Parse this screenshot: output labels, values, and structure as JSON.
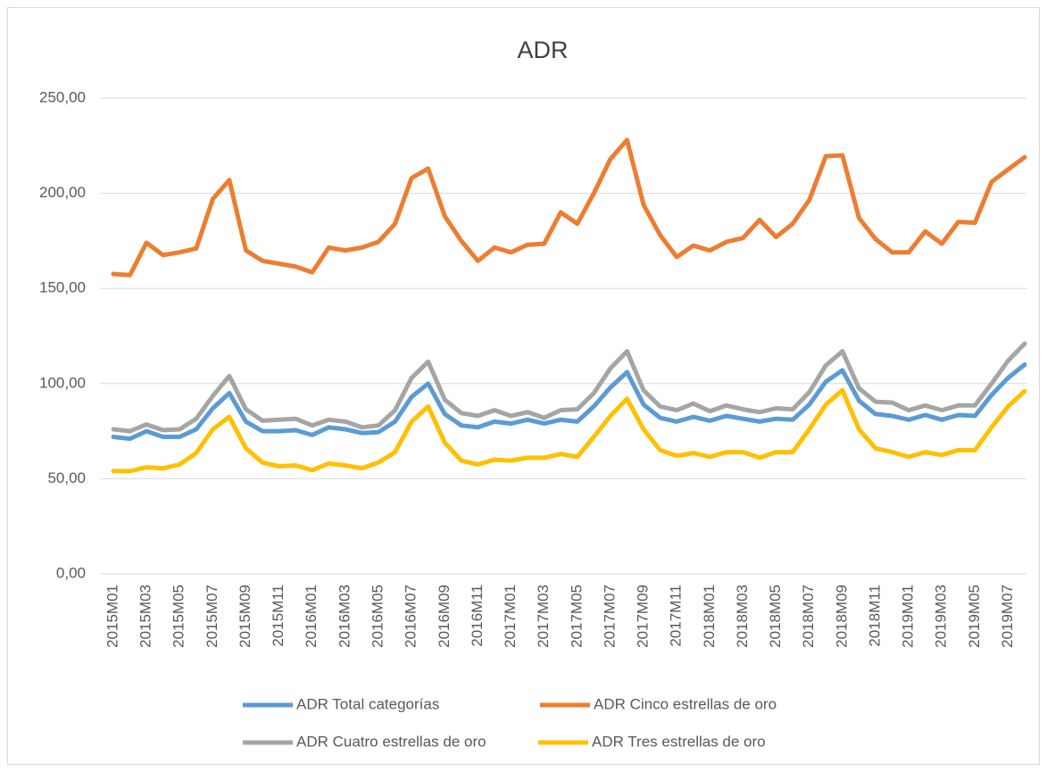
{
  "chart_data": {
    "type": "line",
    "title": "ADR",
    "categories": [
      "2015M01",
      null,
      "2015M03",
      null,
      "2015M05",
      null,
      "2015M07",
      null,
      "2015M09",
      null,
      "2015M11",
      null,
      "2016M01",
      null,
      "2016M03",
      null,
      "2016M05",
      null,
      "2016M07",
      null,
      "2016M09",
      null,
      "2016M11",
      null,
      "2017M01",
      null,
      "2017M03",
      null,
      "2017M05",
      null,
      "2017M07",
      null,
      "2017M09",
      null,
      "2017M11",
      null,
      "2018M01",
      null,
      "2018M03",
      null,
      "2018M05",
      null,
      "2018M07",
      null,
      "2018M09",
      null,
      "2018M11",
      null,
      "2019M01",
      null,
      "2019M03",
      null,
      "2019M05",
      null,
      "2019M07",
      null
    ],
    "series": [
      {
        "name": "ADR Total categorías",
        "color": "#5b9bd5",
        "values": [
          72,
          71,
          75,
          72,
          72,
          76,
          87,
          95,
          80,
          75,
          75,
          75.5,
          73,
          77,
          76,
          74,
          74.5,
          80,
          93,
          100,
          84,
          78,
          77,
          80,
          79,
          81,
          79,
          81,
          80,
          88,
          98,
          106,
          89,
          82,
          80,
          82.5,
          80.5,
          83,
          81.5,
          80,
          81.5,
          81,
          89,
          101,
          107,
          91,
          84,
          83,
          81,
          83.5,
          81,
          83.5,
          83,
          94,
          103,
          110
        ]
      },
      {
        "name": "ADR Cinco estrellas de oro",
        "color": "#ed7d31",
        "values": [
          157.6,
          157,
          174,
          167.5,
          169,
          171,
          197,
          207,
          170,
          164.5,
          163,
          161.5,
          158.5,
          171.5,
          170,
          171.5,
          174.5,
          184,
          208,
          213,
          188,
          175,
          164.5,
          171.5,
          169,
          173,
          173.5,
          190,
          184,
          200,
          218,
          228,
          194,
          178,
          166.5,
          172.5,
          170,
          174.5,
          176.5,
          186,
          177,
          184,
          196.5,
          219.5,
          220,
          187,
          176,
          169,
          169,
          180,
          173.5,
          185,
          184.5,
          206,
          212.5,
          219
        ]
      },
      {
        "name": "ADR Cuatro estrellas de oro",
        "color": "#a5a5a5",
        "values": [
          76,
          75,
          78.5,
          75.5,
          76,
          81.5,
          93.5,
          104,
          86.5,
          80.5,
          81,
          81.5,
          78,
          81,
          80,
          77,
          78,
          86,
          103,
          111.5,
          91.5,
          84.5,
          83,
          86,
          83,
          85,
          82,
          86,
          86.5,
          95,
          108,
          117,
          96.5,
          88,
          86,
          89.5,
          85.5,
          88.5,
          86.5,
          85,
          87,
          86.5,
          95.5,
          109.5,
          117,
          97.5,
          90.5,
          90,
          86,
          88.5,
          86,
          88.5,
          88.5,
          100,
          112,
          121
        ]
      },
      {
        "name": "ADR Tres estrellas de oro",
        "color": "#ffc000",
        "values": [
          54,
          54,
          56,
          55.5,
          57.5,
          63.5,
          76,
          82.5,
          66,
          58.5,
          56.5,
          57,
          54.5,
          58,
          57,
          55.5,
          58.5,
          64,
          80,
          88,
          69,
          59.5,
          57.5,
          60,
          59.5,
          61,
          61,
          63,
          61.5,
          72,
          83,
          92,
          76,
          65,
          62,
          63.5,
          61.5,
          64,
          64,
          61,
          64,
          64,
          76,
          89,
          96.5,
          76,
          66,
          64,
          61.5,
          64,
          62.5,
          65,
          65,
          77,
          88,
          96
        ]
      }
    ],
    "ylim": [
      0,
      250
    ],
    "yticks": [
      {
        "value": 0,
        "label": "0,00"
      },
      {
        "value": 50,
        "label": "50,00"
      },
      {
        "value": 100,
        "label": "100,00"
      },
      {
        "value": 150,
        "label": "150,00"
      },
      {
        "value": 200,
        "label": "200,00"
      },
      {
        "value": 250,
        "label": "250,00"
      }
    ],
    "grid": true,
    "legend": "bottom"
  }
}
